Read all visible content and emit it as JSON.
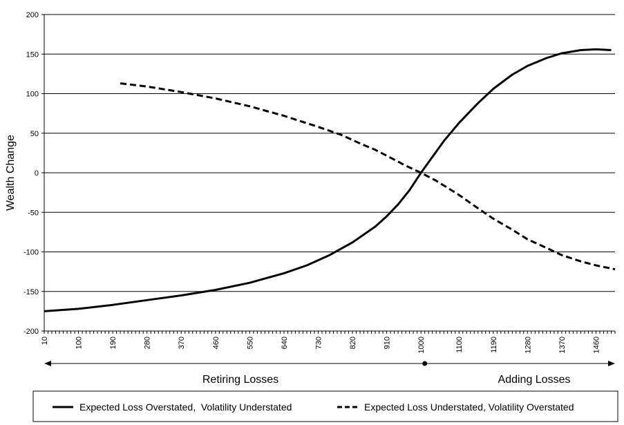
{
  "chart_data": {
    "type": "line",
    "title": "",
    "xlabel": "",
    "ylabel": "Wealth Change",
    "ylim": [
      -200,
      200
    ],
    "yticks": [
      -200,
      -150,
      -100,
      -50,
      0,
      50,
      100,
      150,
      200
    ],
    "xlim": [
      10,
      1510
    ],
    "xtick_labels": [
      "10",
      "100",
      "190",
      "280",
      "370",
      "460",
      "550",
      "640",
      "730",
      "820",
      "910",
      "1000",
      "1100",
      "1190",
      "1280",
      "1370",
      "1460"
    ],
    "grid": "horizontal",
    "legend_position": "bottom",
    "annotations": {
      "retiring_label": "Retiring Losses",
      "adding_label": "Adding Losses",
      "divider_x": 1010
    },
    "series": [
      {
        "name": "Expected Loss Overstated,  Volatility Understated",
        "color": "#000000",
        "style": "solid",
        "x": [
          10,
          100,
          190,
          280,
          370,
          460,
          550,
          640,
          700,
          760,
          820,
          880,
          910,
          940,
          970,
          1000,
          1030,
          1060,
          1100,
          1150,
          1190,
          1240,
          1280,
          1330,
          1370,
          1420,
          1460,
          1500
        ],
        "y": [
          -175,
          -172,
          -167,
          -161,
          -155,
          -148,
          -139,
          -127,
          -117,
          -104,
          -88,
          -68,
          -55,
          -40,
          -22,
          0,
          20,
          40,
          63,
          88,
          106,
          124,
          135,
          145,
          151,
          155,
          156,
          155
        ]
      },
      {
        "name": "Expected Loss Understated, Volatility Overstated",
        "color": "#000000",
        "style": "dashed",
        "x": [
          210,
          280,
          370,
          460,
          550,
          640,
          730,
          790,
          840,
          880,
          920,
          960,
          1000,
          1040,
          1100,
          1150,
          1190,
          1240,
          1280,
          1330,
          1370,
          1420,
          1460,
          1510
        ],
        "y": [
          113,
          109,
          102,
          94,
          84,
          72,
          58,
          48,
          37,
          29,
          19,
          9,
          0,
          -10,
          -28,
          -45,
          -58,
          -72,
          -84,
          -95,
          -104,
          -112,
          -117,
          -122
        ]
      }
    ]
  }
}
